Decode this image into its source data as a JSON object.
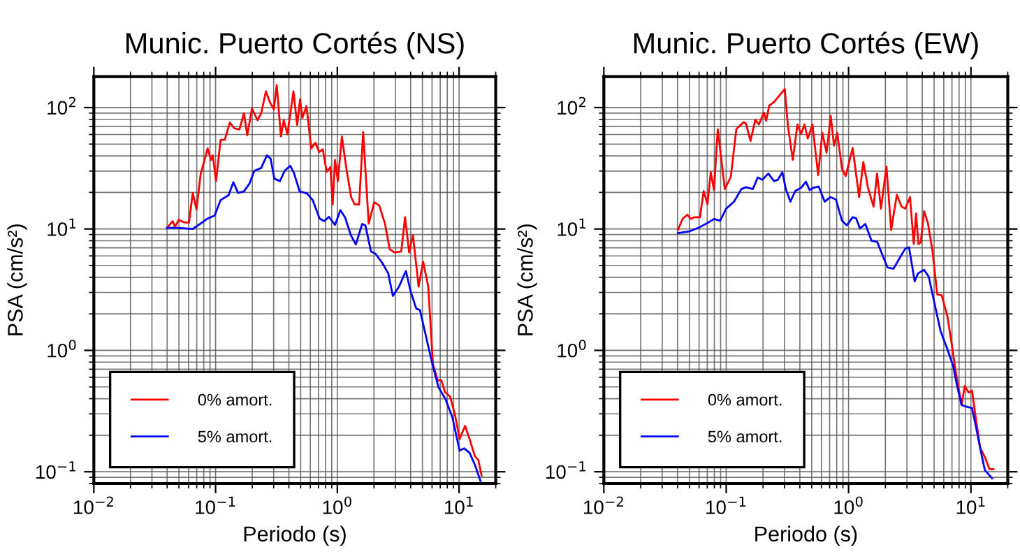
{
  "chart_data": [
    {
      "type": "line",
      "title": "Munic. Puerto Cortés (NS)",
      "xlabel": "Periodo (s)",
      "ylabel": "PSA (cm/s²)",
      "log": "xy",
      "grid": true,
      "legend": "bottom left",
      "line_style": "solid",
      "marker": "none",
      "xlim": [
        0.01,
        20
      ],
      "ylim": [
        0.08,
        180
      ],
      "xticks": [
        {
          "value": 0.01,
          "label": "10$^{−2}$"
        },
        {
          "value": 0.1,
          "label": "10$^{−1}$"
        },
        {
          "value": 1,
          "label": "10$^{0}$"
        },
        {
          "value": 10,
          "label": "10$^{1}$"
        }
      ],
      "yticks": [
        {
          "value": 0.1,
          "label": "10$^{−1}$"
        },
        {
          "value": 1,
          "label": "10$^{0}$"
        },
        {
          "value": 10,
          "label": "10$^{1}$"
        },
        {
          "value": 100,
          "label": "10$^{2}$"
        }
      ],
      "series": [
        {
          "name": "0% amort.",
          "color": "#ff0000",
          "x": [
            0.04,
            0.0444,
            0.0464,
            0.0498,
            0.0554,
            0.0605,
            0.0649,
            0.0697,
            0.0754,
            0.0861,
            0.0916,
            0.0948,
            0.1009,
            0.11,
            0.119,
            0.131,
            0.142,
            0.157,
            0.171,
            0.182,
            0.199,
            0.221,
            0.237,
            0.259,
            0.278,
            0.301,
            0.318,
            0.344,
            0.363,
            0.389,
            0.436,
            0.468,
            0.494,
            0.516,
            0.558,
            0.61,
            0.661,
            0.709,
            0.76,
            0.817,
            0.877,
            0.916,
            0.957,
            1.01,
            1.09,
            1.19,
            1.3,
            1.39,
            1.51,
            1.63,
            1.81,
            2.01,
            2.21,
            2.46,
            2.69,
            2.93,
            3.35,
            3.6,
            3.89,
            4.18,
            4.65,
            5.07,
            5.58,
            6.1,
            6.67,
            7.15,
            7.67,
            8.45,
            9.25,
            10.1,
            11.2,
            12.2,
            13.5,
            14.4,
            15.3
          ],
          "values": [
            10.2,
            11.6,
            10.4,
            11.9,
            11.3,
            11.3,
            19.8,
            14.5,
            28.3,
            46.1,
            37.0,
            40.4,
            24.8,
            54.2,
            54.2,
            75.2,
            67.6,
            65.9,
            89.9,
            59.2,
            98.2,
            78.7,
            89.9,
            136,
            112,
            96.6,
            153,
            57.7,
            78.7,
            60.3,
            136,
            71.9,
            117,
            82.2,
            103,
            46.1,
            51.3,
            43.0,
            45.3,
            29.6,
            32.4,
            15.9,
            37.0,
            24.8,
            57.7,
            30.9,
            18.2,
            15.9,
            15.9,
            63.0,
            11.1,
            16.6,
            15.6,
            11.1,
            6.82,
            6.41,
            6.53,
            12.5,
            6.41,
            8.91,
            3.35,
            5.37,
            3.35,
            0.773,
            0.566,
            0.566,
            0.453,
            0.415,
            0.296,
            0.186,
            0.239,
            0.186,
            0.134,
            0.125,
            0.0931
          ]
        },
        {
          "name": "5% amort.",
          "color": "#0000ff",
          "x": [
            0.04,
            0.0485,
            0.0649,
            0.0754,
            0.0861,
            0.0982,
            0.11,
            0.128,
            0.14,
            0.153,
            0.171,
            0.19,
            0.208,
            0.237,
            0.264,
            0.283,
            0.304,
            0.338,
            0.369,
            0.41,
            0.44,
            0.49,
            0.564,
            0.627,
            0.715,
            0.781,
            0.853,
            0.957,
            1.06,
            1.16,
            1.29,
            1.42,
            1.6,
            1.7,
            1.89,
            2.06,
            2.35,
            2.62,
            2.86,
            3.21,
            3.66,
            4.0,
            4.45,
            4.77,
            5.44,
            6.1,
            6.78,
            7.74,
            8.83,
            10.1,
            11.0,
            12.2,
            13.5,
            15.0
          ],
          "values": [
            10.2,
            10.2,
            10.0,
            11.1,
            12.2,
            12.9,
            17.3,
            19.0,
            24.3,
            19.8,
            20.4,
            23.7,
            30.1,
            31.8,
            40.4,
            38.0,
            25.9,
            24.8,
            30.1,
            33.2,
            29.0,
            20.4,
            19.6,
            17.3,
            12.2,
            11.6,
            12.6,
            10.8,
            14.3,
            12.4,
            8.91,
            7.46,
            11.0,
            10.7,
            6.53,
            6.24,
            5.22,
            4.3,
            2.81,
            3.35,
            4.5,
            3.06,
            2.21,
            2.15,
            1.21,
            0.74,
            0.496,
            0.396,
            0.278,
            0.149,
            0.156,
            0.143,
            0.114,
            0.0837
          ]
        }
      ]
    },
    {
      "type": "line",
      "title": "Munic. Puerto Cortés (EW)",
      "xlabel": "Periodo (s)",
      "ylabel": "PSA (cm/s²)",
      "log": "xy",
      "grid": true,
      "legend": "bottom left",
      "line_style": "solid",
      "marker": "none",
      "xlim": [
        0.01,
        20
      ],
      "ylim": [
        0.08,
        180
      ],
      "xticks": [
        {
          "value": 0.01,
          "label": "10$^{−2}$"
        },
        {
          "value": 0.1,
          "label": "10$^{−1}$"
        },
        {
          "value": 1,
          "label": "10$^{0}$"
        },
        {
          "value": 10,
          "label": "10$^{1}$"
        }
      ],
      "yticks": [
        {
          "value": 0.1,
          "label": "10$^{−1}$"
        },
        {
          "value": 1,
          "label": "10$^{0}$"
        },
        {
          "value": 10,
          "label": "10$^{1}$"
        },
        {
          "value": 100,
          "label": "10$^{2}$"
        }
      ],
      "series": [
        {
          "name": "0% amort.",
          "color": "#ff0000",
          "x": [
            0.0403,
            0.044,
            0.0481,
            0.0516,
            0.0549,
            0.061,
            0.0655,
            0.0703,
            0.0748,
            0.0795,
            0.0853,
            0.0974,
            0.109,
            0.121,
            0.139,
            0.145,
            0.158,
            0.173,
            0.185,
            0.203,
            0.212,
            0.225,
            0.246,
            0.269,
            0.301,
            0.32,
            0.35,
            0.382,
            0.41,
            0.436,
            0.464,
            0.507,
            0.564,
            0.61,
            0.661,
            0.715,
            0.76,
            0.809,
            0.884,
            0.948,
            1.08,
            1.22,
            1.32,
            1.44,
            1.6,
            1.71,
            1.84,
            2.04,
            2.23,
            2.48,
            2.71,
            2.91,
            3.18,
            3.41,
            3.56,
            3.72,
            3.89,
            4.14,
            4.45,
            4.85,
            5.3,
            5.78,
            6.43,
            7.03,
            7.54,
            8.38,
            8.91,
            9.57,
            10.2,
            10.9,
            11.9,
            13.0,
            14.2,
            15.3
          ],
          "values": [
            9.82,
            12.1,
            13.1,
            12.1,
            12.5,
            12.5,
            20.5,
            16.0,
            29.3,
            20.9,
            66.4,
            21.3,
            26.8,
            66.4,
            75.9,
            73.9,
            53.2,
            79.4,
            72.6,
            90.8,
            78.0,
            104,
            111,
            124,
            142,
            69.5,
            37.2,
            72.6,
            60.8,
            72.6,
            55.6,
            72.6,
            27.8,
            61.9,
            42.6,
            85.3,
            48.6,
            61.9,
            31.2,
            27.3,
            46.5,
            18.3,
            35.6,
            21.9,
            15.3,
            28.6,
            14.7,
            32.7,
            9.82,
            19.1,
            15.3,
            14.7,
            18.3,
            7.52,
            13.4,
            7.52,
            7.73,
            14.0,
            11.2,
            6.59,
            2.9,
            2.83,
            1.9,
            1.06,
            0.653,
            0.356,
            0.509,
            0.45,
            0.466,
            0.288,
            0.157,
            0.132,
            0.105,
            0.105
          ]
        },
        {
          "name": "5% amort.",
          "color": "#0000ff",
          "x": [
            0.0403,
            0.0503,
            0.06,
            0.0703,
            0.0795,
            0.0892,
            0.1,
            0.116,
            0.133,
            0.145,
            0.165,
            0.181,
            0.197,
            0.221,
            0.246,
            0.264,
            0.288,
            0.307,
            0.335,
            0.366,
            0.41,
            0.448,
            0.481,
            0.52,
            0.569,
            0.638,
            0.709,
            0.788,
            0.884,
            0.966,
            1.08,
            1.15,
            1.24,
            1.37,
            1.54,
            1.71,
            1.9,
            2.08,
            2.33,
            2.62,
            2.91,
            3.12,
            3.47,
            3.69,
            4.14,
            4.52,
            4.93,
            5.64,
            6.43,
            7.15,
            7.67,
            8.38,
            9.16,
            10.2,
            10.9,
            11.9,
            13.0,
            14.9
          ],
          "values": [
            9.23,
            9.57,
            10.3,
            11.2,
            12.1,
            11.7,
            14.7,
            16.8,
            21.3,
            22.1,
            21.3,
            26.6,
            25.4,
            28.6,
            24.8,
            25.4,
            29.3,
            21.3,
            16.8,
            20.5,
            21.9,
            24.5,
            20.9,
            21.9,
            22.4,
            16.8,
            18.3,
            17.5,
            11.7,
            10.7,
            12.5,
            12.3,
            10.1,
            11.0,
            8.0,
            7.87,
            6.03,
            4.82,
            4.7,
            5.77,
            6.89,
            7.07,
            3.7,
            4.3,
            4.61,
            4.04,
            2.7,
            1.45,
            1.02,
            0.746,
            0.522,
            0.356,
            0.344,
            0.335,
            0.245,
            0.157,
            0.103,
            0.0883
          ]
        }
      ]
    }
  ]
}
